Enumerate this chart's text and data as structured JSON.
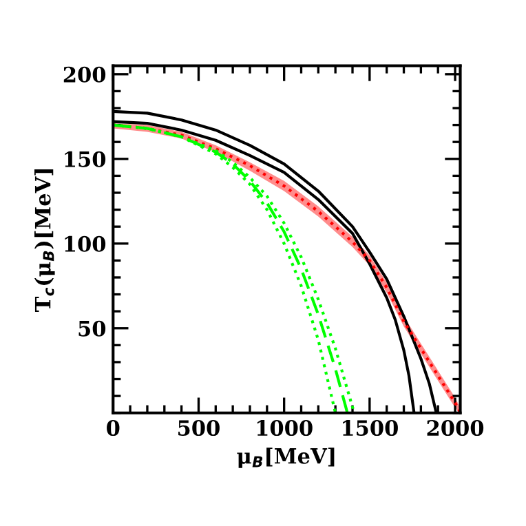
{
  "chart_data": {
    "type": "line",
    "xlabel": "μ$_{B}$[MeV]",
    "ylabel": "T$_{c}$(μ$_{B}$)[MeV]",
    "xlim": [
      0,
      2030
    ],
    "ylim": [
      0,
      205
    ],
    "xticks": [
      0,
      500,
      1000,
      1500,
      2000
    ],
    "yticks": [
      50,
      100,
      150,
      200
    ],
    "grid": false,
    "legend": false,
    "marker": "none",
    "series": [
      {
        "color": "#000000",
        "line_style": "solid",
        "x": [
          0,
          200,
          400,
          600,
          800,
          1000,
          1200,
          1400,
          1500,
          1600,
          1700,
          1800,
          1850,
          1890
        ],
        "values": [
          178,
          177,
          173,
          167,
          158,
          147,
          131,
          110,
          95,
          79,
          57,
          32,
          17,
          0
        ]
      },
      {
        "color": "#000000",
        "line_style": "solid",
        "x": [
          0,
          200,
          400,
          600,
          800,
          1000,
          1200,
          1400,
          1500,
          1600,
          1650,
          1700,
          1730,
          1760
        ],
        "values": [
          172,
          171,
          167,
          161,
          152,
          142,
          126,
          106,
          88,
          68,
          55,
          37,
          22,
          0
        ]
      },
      {
        "color": "#ff0000",
        "line_style": "dotted",
        "x": [
          0,
          200,
          400,
          600,
          800,
          1000,
          1200,
          1400,
          1500,
          1600,
          1700,
          1800,
          1900,
          2000,
          2030
        ],
        "values": [
          170,
          168,
          164,
          156,
          146,
          134,
          119,
          101,
          90,
          74,
          54,
          38,
          22,
          6,
          0
        ],
        "lower": [
          168,
          166,
          162,
          154,
          143,
          131,
          116,
          98,
          87,
          71,
          51,
          35,
          19,
          3,
          0
        ],
        "upper": [
          171,
          170,
          166,
          158,
          148,
          137,
          122,
          104,
          93,
          77,
          57,
          41,
          25,
          9,
          3
        ]
      },
      {
        "color": "#00ff00",
        "line_style": "dashed",
        "x": [
          0,
          200,
          400,
          600,
          700,
          800,
          900,
          1000,
          1100,
          1200,
          1300,
          1370
        ],
        "values": [
          170,
          168,
          163,
          154,
          147,
          137,
          124,
          107,
          85,
          58,
          26,
          0
        ]
      },
      {
        "color": "#00ff00",
        "line_style": "dotted",
        "x": [
          0,
          200,
          400,
          600,
          700,
          800,
          900,
          1000,
          1100,
          1200,
          1300
        ],
        "values": [
          170,
          168,
          163,
          153,
          145,
          135,
          120,
          100,
          75,
          43,
          0
        ]
      },
      {
        "color": "#00ff00",
        "line_style": "dotted",
        "x": [
          0,
          200,
          400,
          600,
          700,
          800,
          900,
          1000,
          1100,
          1200,
          1300,
          1410
        ],
        "values": [
          170,
          168,
          163,
          155,
          148,
          139,
          128,
          112,
          92,
          67,
          38,
          0
        ]
      }
    ]
  }
}
